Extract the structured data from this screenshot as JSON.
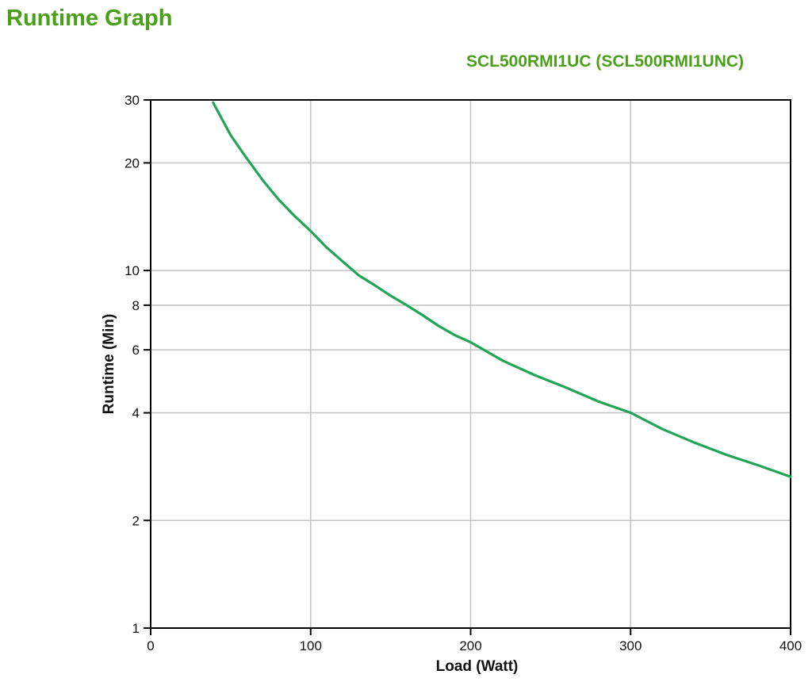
{
  "chart_data": {
    "type": "line",
    "title": "Runtime Graph",
    "subtitle": "SCL500RMI1UC (SCL500RMI1UNC)",
    "xlabel": "Load (Watt)",
    "ylabel": "Runtime (Min)",
    "xlim": [
      0,
      400
    ],
    "ylim": [
      1,
      30
    ],
    "x_scale": "linear",
    "y_scale": "log",
    "x_ticks": [
      0,
      100,
      200,
      300,
      400
    ],
    "y_ticks": [
      1,
      2,
      4,
      6,
      8,
      10,
      20,
      30
    ],
    "x_gridlines": [
      100,
      200,
      300
    ],
    "y_gridlines": [
      2,
      4,
      6,
      8,
      10,
      20
    ],
    "grid": true,
    "legend": "none",
    "series": [
      {
        "name": "SCL500RMI1UC (SCL500RMI1UNC)",
        "x": [
          39,
          50,
          60,
          70,
          80,
          90,
          100,
          110,
          120,
          130,
          140,
          150,
          160,
          170,
          180,
          190,
          200,
          220,
          240,
          260,
          280,
          300,
          320,
          340,
          360,
          380,
          400
        ],
        "y": [
          29.5,
          23.9,
          20.6,
          17.9,
          15.8,
          14.2,
          12.9,
          11.6,
          10.6,
          9.7,
          9.1,
          8.5,
          8.0,
          7.5,
          7.0,
          6.6,
          6.3,
          5.6,
          5.1,
          4.7,
          4.3,
          4.0,
          3.6,
          3.3,
          3.05,
          2.85,
          2.65
        ]
      }
    ],
    "colors": {
      "title_green": "#4aa01a",
      "line_green": "#21a558",
      "grid_gray": "#c3c3c3",
      "axis_black": "#000000"
    }
  }
}
